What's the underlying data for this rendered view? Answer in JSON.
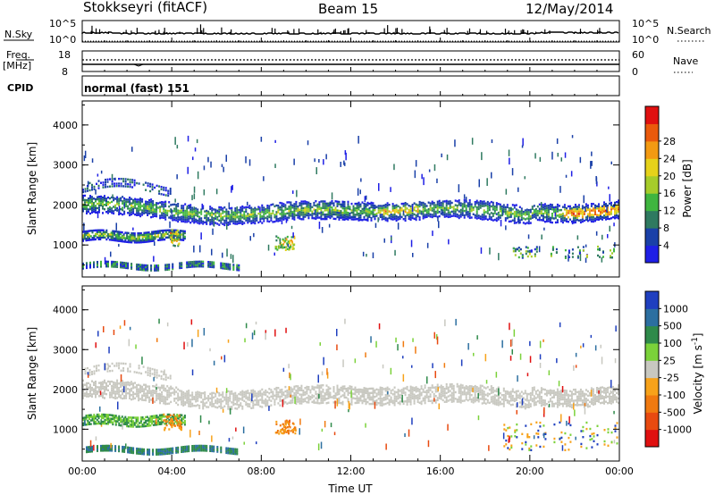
{
  "header": {
    "station": "Stokkseyri (fitACF)",
    "beam": "Beam 15",
    "date": "12/May/2014"
  },
  "panels": {
    "nsky": {
      "label": "N.Sky",
      "ytick_top": "10^5",
      "ytick_bottom": "10^0",
      "right_tick_top": "10^5",
      "right_tick_bottom": "10^0",
      "right_label": "N.Search"
    },
    "freq": {
      "label_line1": "Freq.",
      "label_line2": "[MHz]",
      "ytick_top": "18",
      "ytick_bottom": "8",
      "right_tick_top": "60",
      "right_tick_bottom": "0",
      "right_label": "Nave"
    },
    "cpid": {
      "label": "CPID",
      "text": "normal (fast) 151"
    }
  },
  "chart_data": [
    {
      "type": "heatmap",
      "name": "power",
      "ylabel": "Slant Range [km]",
      "yticks": [
        "1000",
        "2000",
        "3000",
        "4000"
      ],
      "ylim": [
        200,
        4600
      ],
      "colorbar": {
        "label": "Power [dB]",
        "ticks": [
          "4",
          "8",
          "12",
          "16",
          "20",
          "24",
          "28"
        ],
        "colors": [
          "#1f1fe6",
          "#1a40a8",
          "#2f7a60",
          "#3fb53f",
          "#a6cc2a",
          "#e6d21a",
          "#f39a12",
          "#ea5a0c",
          "#e01010"
        ]
      },
      "features": [
        {
          "range_km_start": 2050,
          "range_km_end": 1650,
          "time_h": [
            0,
            24
          ],
          "desc": "main echo band"
        },
        {
          "range_km": 1250,
          "time_h": [
            0,
            4.5
          ]
        },
        {
          "range_km": 500,
          "time_h": [
            0,
            7
          ]
        }
      ]
    },
    {
      "type": "heatmap",
      "name": "velocity",
      "xlabel": "Time UT",
      "xticks": [
        "00:00",
        "04:00",
        "08:00",
        "12:00",
        "16:00",
        "20:00",
        "00:00"
      ],
      "xlim": [
        0,
        24
      ],
      "ylabel": "Slant Range [km]",
      "yticks": [
        "1000",
        "2000",
        "3000",
        "4000"
      ],
      "ylim": [
        200,
        4600
      ],
      "colorbar": {
        "label": "Velocity [m s^-1]",
        "ticks": [
          "1000",
          "500",
          "100",
          "25",
          "-25",
          "-100",
          "-500",
          "-1000"
        ],
        "colors": [
          "#1f3fbf",
          "#2c6fa0",
          "#2f8a4a",
          "#7bd23a",
          "#c8c8c0",
          "#f7a21a",
          "#f07a10",
          "#e84a10",
          "#e01010"
        ]
      }
    }
  ],
  "colors": {
    "frame": "#000000",
    "ground_scatter": "#c8c8c0"
  }
}
